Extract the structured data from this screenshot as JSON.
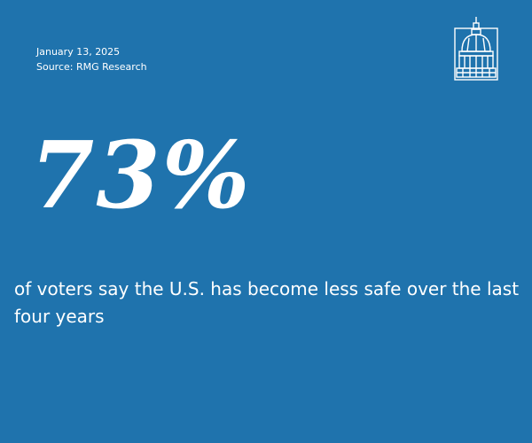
{
  "date": "January 13, 2025",
  "source": "Source: RMG Research",
  "stat": "73%",
  "caption": "of voters say the U.S. has become less safe over the last four years",
  "logo": {
    "icon": "capitol-dome-icon"
  },
  "colors": {
    "background": "#1f73ad",
    "text": "#ffffff"
  }
}
